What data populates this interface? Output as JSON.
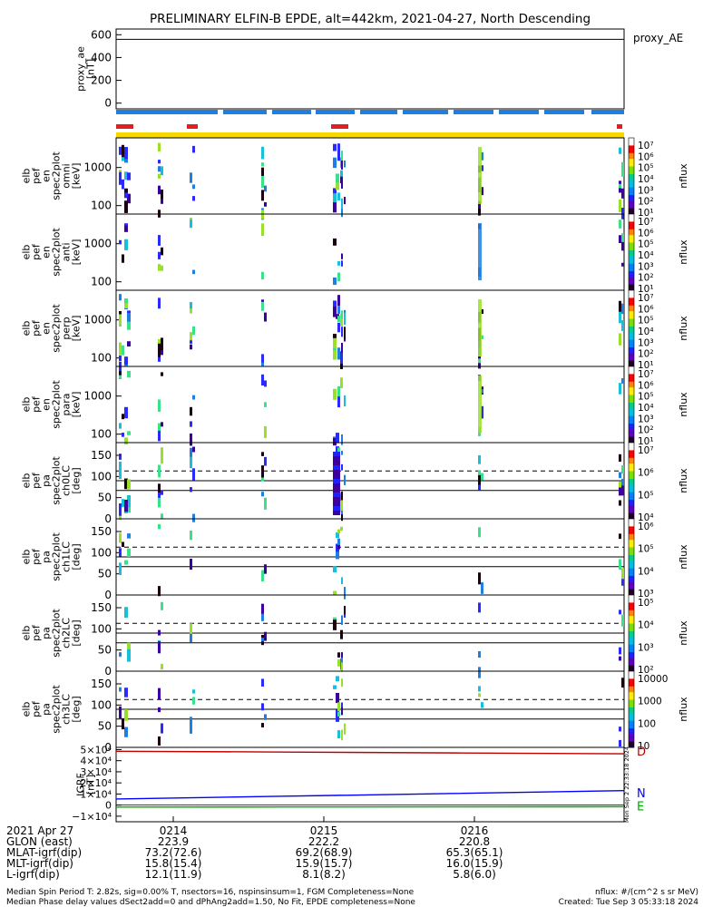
{
  "title": "PRELIMINARY ELFIN-B EPDE, alt=442km, 2021-04-27, North Descending",
  "colors": {
    "spin_bar": "#1e7fe0",
    "marker_red": "#e02020",
    "marker_yellow": "#f5d800",
    "grf_d": "#c00000",
    "grf_n": "#0000ff",
    "grf_e": "#00aa00"
  },
  "ae_panel": {
    "ylabel": "proxy_ae\n[nT]",
    "yticks": [
      "600",
      "400",
      "200",
      "0"
    ],
    "tag": "proxy_AE",
    "ylim": [
      -50,
      650
    ],
    "line_value": 560
  },
  "spec_panels": [
    {
      "ylabel": "elb\npef\nen\nspec2plot\nomni\n[keV]",
      "yticks": [
        "1000",
        "100"
      ],
      "cb_label": "nflux",
      "cb_ticks": [
        "10⁷",
        "10⁶",
        "10⁵",
        "10⁴",
        "10³",
        "10²",
        "10¹"
      ]
    },
    {
      "ylabel": "elb\npef\nen\nspec2plot\nanti\n[keV]",
      "yticks": [
        "1000",
        "100"
      ],
      "cb_label": "nflux",
      "cb_ticks": [
        "10⁷",
        "10⁶",
        "10⁵",
        "10⁴",
        "10³",
        "10²",
        "10¹"
      ]
    },
    {
      "ylabel": "elb\npef\nen\nspec2plot\nperp\n[keV]",
      "yticks": [
        "1000",
        "100"
      ],
      "cb_label": "nflux",
      "cb_ticks": [
        "10⁷",
        "10⁶",
        "10⁵",
        "10⁴",
        "10³",
        "10²",
        "10¹"
      ]
    },
    {
      "ylabel": "elb\npef\nen\nspec2plot\npara\n[keV]",
      "yticks": [
        "1000",
        "100"
      ],
      "cb_label": "nflux",
      "cb_ticks": [
        "10⁷",
        "10⁶",
        "10⁵",
        "10⁴",
        "10³",
        "10²",
        "10¹"
      ]
    }
  ],
  "pa_panels": [
    {
      "ylabel": "elb\npef\npa\nspec2plot\nch0LC\n[deg]",
      "yticks": [
        "150",
        "100",
        "50",
        "0"
      ],
      "cb_label": "nflux",
      "cb_ticks": [
        "10⁷",
        "10⁶",
        "10⁵",
        "10⁴"
      ]
    },
    {
      "ylabel": "elb\npef\npa\nspec2plot\nch1LC\n[deg]",
      "yticks": [
        "150",
        "100",
        "50",
        "0"
      ],
      "cb_label": "nflux",
      "cb_ticks": [
        "10⁶",
        "10⁵",
        "10⁴",
        "10³"
      ]
    },
    {
      "ylabel": "elb\npef\npa\nspec2plot\nch2LC\n[deg]",
      "yticks": [
        "150",
        "100",
        "50",
        "0"
      ],
      "cb_label": "nflux",
      "cb_ticks": [
        "10⁵",
        "10⁴",
        "10³",
        "10²"
      ]
    },
    {
      "ylabel": "elb\npef\npa\nspec2plot\nch3LC\n[deg]",
      "yticks": [
        "150",
        "100",
        "50",
        "0"
      ],
      "cb_label": "nflux",
      "cb_ticks": [
        "10000",
        "1000",
        "100",
        "10"
      ]
    }
  ],
  "grf_panel": {
    "ylabel": "IGRF\n[nT]",
    "yticks": [
      "5×10⁴",
      "4×10⁴",
      "3×10⁴",
      "2×10⁴",
      "1×10⁴",
      "0",
      "−1×10⁴"
    ],
    "legend": [
      "D",
      "N",
      "E"
    ]
  },
  "footer": {
    "rows": [
      {
        "label": "2021 Apr 27",
        "values": [
          "0214",
          "0215",
          "0216"
        ]
      },
      {
        "label": "GLON (east)",
        "values": [
          "223.9",
          "222.2",
          "220.8"
        ]
      },
      {
        "label": "MLAT-igrf(dip)",
        "values": [
          "73.2(72.6)",
          "69.2(68.9)",
          "65.3(65.1)"
        ]
      },
      {
        "label": "MLT-igrf(dip)",
        "values": [
          "15.8(15.4)",
          "15.9(15.7)",
          "16.0(15.9)"
        ]
      },
      {
        "label": "L-igrf(dip)",
        "values": [
          "12.1(11.9)",
          "8.1(8.2)",
          "5.8(6.0)"
        ]
      }
    ],
    "note1": "Median Spin Period T: 2.82s, sig=0.00% T, nsectors=16, nspinsinsum=1, FGM Completeness=None",
    "note2": "Median Phase delay values dSect2add=0 and dPhAng2add=1.50, No Fit, EPDE completeness=None",
    "units": "nflux: #/(cm^2 s sr MeV)",
    "created": "Created: Tue Sep  3 05:33:18 2024"
  },
  "stamp": "Mon Sep  2 22:33:18 2024",
  "chart_data": [
    {
      "type": "line",
      "title": "PRELIMINARY ELFIN-B EPDE, alt=442km, 2021-04-27, North Descending",
      "xlabel": "",
      "ylabel": "proxy_ae [nT]",
      "ylim": [
        -50,
        650
      ],
      "series": [
        {
          "name": "proxy_AE",
          "x": [
            "start",
            "end"
          ],
          "values": [
            560,
            560
          ]
        }
      ]
    },
    {
      "type": "heatmap",
      "ylabel": "elb pef en spec2plot omni [keV]",
      "ylog": true,
      "ylim": [
        60,
        6000
      ],
      "colorbar": {
        "label": "nflux",
        "range": [
          10,
          10000000
        ]
      }
    },
    {
      "type": "heatmap",
      "ylabel": "elb pef en spec2plot anti [keV]",
      "ylog": true,
      "ylim": [
        60,
        6000
      ],
      "colorbar": {
        "label": "nflux",
        "range": [
          10,
          10000000
        ]
      }
    },
    {
      "type": "heatmap",
      "ylabel": "elb pef en spec2plot perp [keV]",
      "ylog": true,
      "ylim": [
        60,
        6000
      ],
      "colorbar": {
        "label": "nflux",
        "range": [
          10,
          10000000
        ]
      }
    },
    {
      "type": "heatmap",
      "ylabel": "elb pef en spec2plot para [keV]",
      "ylog": true,
      "ylim": [
        60,
        6000
      ],
      "colorbar": {
        "label": "nflux",
        "range": [
          10,
          10000000
        ]
      }
    },
    {
      "type": "heatmap",
      "ylabel": "elb pef pa spec2plot ch0LC [deg]",
      "ylim": [
        0,
        180
      ],
      "reference_lines": [
        {
          "value": 113,
          "style": "dashed"
        },
        {
          "value": 90,
          "style": "solid"
        },
        {
          "value": 67,
          "style": "solid"
        }
      ]
    },
    {
      "type": "heatmap",
      "ylabel": "elb pef pa spec2plot ch1LC [deg]",
      "ylim": [
        0,
        180
      ],
      "reference_lines": [
        {
          "value": 113,
          "style": "dashed"
        },
        {
          "value": 90,
          "style": "solid"
        },
        {
          "value": 67,
          "style": "solid"
        }
      ]
    },
    {
      "type": "heatmap",
      "ylabel": "elb pef pa spec2plot ch2LC [deg]",
      "ylim": [
        0,
        180
      ],
      "reference_lines": [
        {
          "value": 113,
          "style": "dashed"
        },
        {
          "value": 90,
          "style": "solid"
        },
        {
          "value": 67,
          "style": "solid"
        }
      ]
    },
    {
      "type": "heatmap",
      "ylabel": "elb pef pa spec2plot ch3LC [deg]",
      "ylim": [
        0,
        180
      ],
      "reference_lines": [
        {
          "value": 113,
          "style": "dashed"
        },
        {
          "value": 90,
          "style": "solid"
        },
        {
          "value": 67,
          "style": "solid"
        }
      ]
    },
    {
      "type": "line",
      "ylabel": "IGRF [nT]",
      "ylim": [
        -15000,
        52000
      ],
      "series": [
        {
          "name": "D",
          "values": [
            48500,
            47800,
            47000,
            46200
          ]
        },
        {
          "name": "N",
          "values": [
            5500,
            8000,
            10500,
            13000
          ]
        },
        {
          "name": "E",
          "values": [
            -1800,
            -1700,
            -1600,
            -1500
          ]
        }
      ]
    }
  ]
}
